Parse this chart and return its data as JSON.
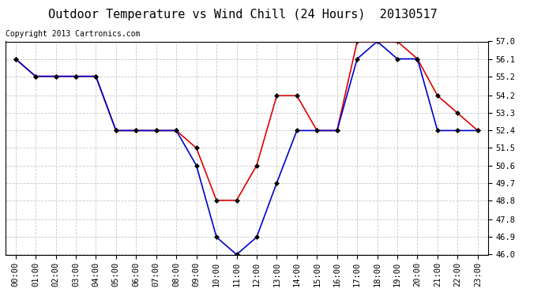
{
  "title": "Outdoor Temperature vs Wind Chill (24 Hours)  20130517",
  "copyright": "Copyright 2013 Cartronics.com",
  "background_color": "#ffffff",
  "plot_bg_color": "#ffffff",
  "grid_color": "#c8c8c8",
  "ylim": [
    46.0,
    57.0
  ],
  "yticks": [
    46.0,
    46.9,
    47.8,
    48.8,
    49.7,
    50.6,
    51.5,
    52.4,
    53.3,
    54.2,
    55.2,
    56.1,
    57.0
  ],
  "hours": [
    0,
    1,
    2,
    3,
    4,
    5,
    6,
    7,
    8,
    9,
    10,
    11,
    12,
    13,
    14,
    15,
    16,
    17,
    18,
    19,
    20,
    21,
    22,
    23
  ],
  "temperature": [
    56.1,
    55.2,
    55.2,
    55.2,
    55.2,
    52.4,
    52.4,
    52.4,
    52.4,
    51.5,
    48.8,
    48.8,
    50.6,
    54.2,
    54.2,
    52.4,
    52.4,
    57.0,
    57.0,
    57.0,
    56.1,
    54.2,
    53.3,
    52.4
  ],
  "wind_chill": [
    56.1,
    55.2,
    55.2,
    55.2,
    55.2,
    52.4,
    52.4,
    52.4,
    52.4,
    50.6,
    46.9,
    46.0,
    46.9,
    49.7,
    52.4,
    52.4,
    52.4,
    56.1,
    57.0,
    56.1,
    56.1,
    52.4,
    52.4,
    52.4
  ],
  "temp_color": "#dd0000",
  "wind_color": "#0000cc",
  "marker": "D",
  "marker_size": 3,
  "line_width": 1.2,
  "legend_wind_bg": "#0000cc",
  "legend_temp_bg": "#cc0000",
  "legend_text_color": "#ffffff",
  "title_fontsize": 11,
  "copyright_fontsize": 7,
  "tick_fontsize": 7.5
}
